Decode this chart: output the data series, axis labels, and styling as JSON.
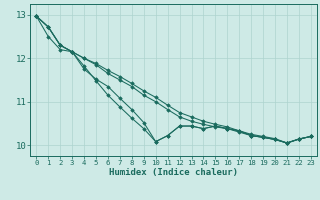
{
  "title": "",
  "xlabel": "Humidex (Indice chaleur)",
  "ylabel": "",
  "xlim": [
    -0.5,
    23.5
  ],
  "ylim": [
    9.75,
    13.25
  ],
  "yticks": [
    10,
    11,
    12,
    13
  ],
  "xticks": [
    0,
    1,
    2,
    3,
    4,
    5,
    6,
    7,
    8,
    9,
    10,
    11,
    12,
    13,
    14,
    15,
    16,
    17,
    18,
    19,
    20,
    21,
    22,
    23
  ],
  "bg_color": "#ceeae6",
  "line_color": "#1a6b5e",
  "grid_color": "#aed4cf",
  "series": [
    [
      12.97,
      12.72,
      12.3,
      12.15,
      11.82,
      11.48,
      11.15,
      10.88,
      10.62,
      10.38,
      10.08,
      10.22,
      10.44,
      10.44,
      10.38,
      10.44,
      10.38,
      10.33,
      10.22,
      10.18,
      10.13,
      10.05,
      10.14,
      10.2
    ],
    [
      12.97,
      12.72,
      12.3,
      12.15,
      12.0,
      11.85,
      11.65,
      11.5,
      11.35,
      11.15,
      11.0,
      10.82,
      10.65,
      10.55,
      10.48,
      10.42,
      10.38,
      10.3,
      10.22,
      10.18,
      10.13,
      10.05,
      10.14,
      10.2
    ],
    [
      12.97,
      12.72,
      12.3,
      12.15,
      12.0,
      11.88,
      11.72,
      11.58,
      11.42,
      11.25,
      11.1,
      10.92,
      10.75,
      10.65,
      10.55,
      10.48,
      10.42,
      10.33,
      10.25,
      10.2,
      10.15,
      10.05,
      10.14,
      10.2
    ],
    [
      12.97,
      12.5,
      12.2,
      12.15,
      11.75,
      11.52,
      11.35,
      11.08,
      10.82,
      10.52,
      10.08,
      10.22,
      10.44,
      10.44,
      10.38,
      10.44,
      10.38,
      10.33,
      10.22,
      10.18,
      10.13,
      10.05,
      10.14,
      10.2
    ]
  ]
}
